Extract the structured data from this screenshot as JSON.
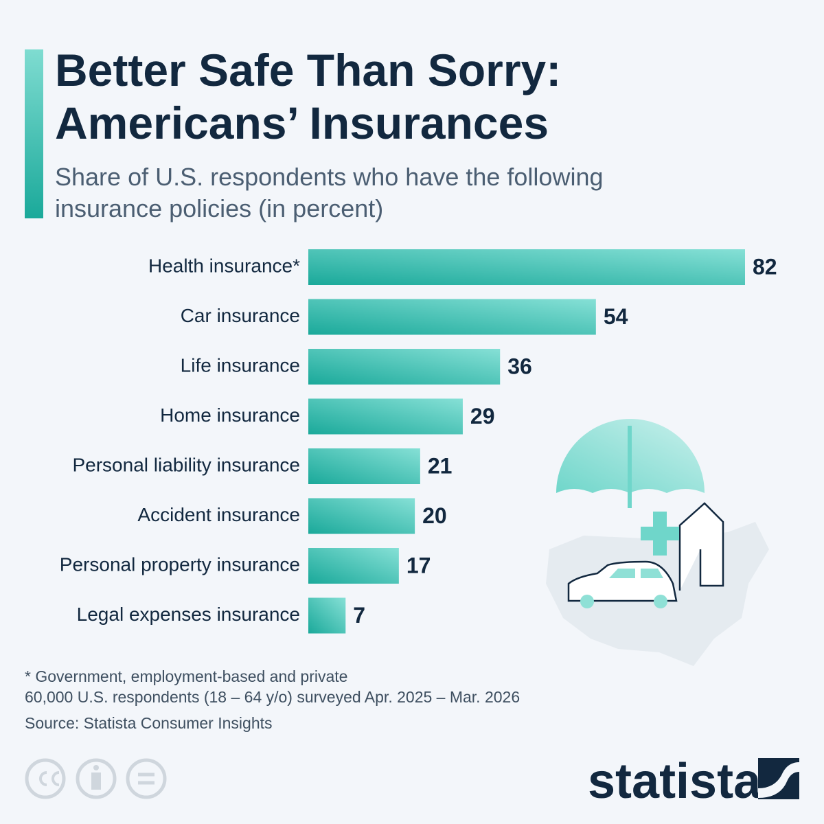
{
  "chart_data": {
    "type": "bar",
    "orientation": "horizontal",
    "title": [
      "Better Safe Than Sorry:",
      "Americans’ Insurances"
    ],
    "subtitle": [
      "Share of U.S. respondents who have the following",
      "insurance policies (in percent)"
    ],
    "categories": [
      "Health insurance*",
      "Car insurance",
      "Life insurance",
      "Home insurance",
      "Personal liability insurance",
      "Accident insurance",
      "Personal property insurance",
      "Legal expenses insurance"
    ],
    "values": [
      82,
      54,
      36,
      29,
      21,
      20,
      17,
      7
    ],
    "color": [
      "#1aa99a",
      "#86e0d6"
    ],
    "notes": [
      "* Government, employment-based and private",
      "60,000 U.S. respondents (18 – 64 y/o) surveyed Apr. 2025 – Mar. 2026",
      "Source: Statista Consumer Insights"
    ],
    "logo": "statista"
  }
}
